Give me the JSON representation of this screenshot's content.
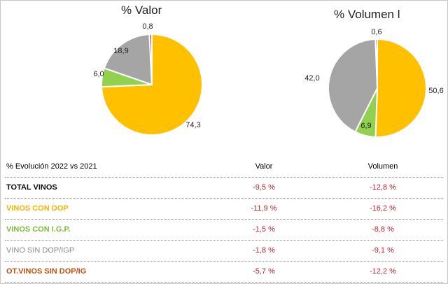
{
  "chart_data": [
    {
      "type": "pie",
      "title": "% Valor",
      "categories": [
        "VINOS CON DOP",
        "VINOS CON I.G.P.",
        "VINO SIN DOP/IGP",
        "OT.VINOS SIN DOP/IG"
      ],
      "values": [
        74.3,
        6.0,
        18.9,
        0.8
      ],
      "labels": [
        "74,3",
        "6,0",
        "18,9",
        "0,8"
      ],
      "colors": [
        "#FFC000",
        "#92D050",
        "#A5A5A5",
        "#C0504D"
      ]
    },
    {
      "type": "pie",
      "title": "% Volumen l",
      "categories": [
        "VINOS CON DOP",
        "VINOS CON I.G.P.",
        "VINO SIN DOP/IGP",
        "OT.VINOS SIN DOP/IG"
      ],
      "values": [
        50.6,
        6.9,
        42.0,
        0.6
      ],
      "labels": [
        "50,6",
        "6,9",
        "42,0",
        "0,6"
      ],
      "colors": [
        "#FFC000",
        "#92D050",
        "#A5A5A5",
        "#C0504D"
      ]
    }
  ],
  "table": {
    "header": [
      "% Evolución 2022 vs 2021",
      "Valor",
      "Volumen"
    ],
    "rows": [
      {
        "label": "TOTAL VINOS",
        "valor": "-9,5 %",
        "volumen": "-12,8 %",
        "color": "#111111"
      },
      {
        "label": "VINOS CON DOP",
        "valor": "-11,9 %",
        "volumen": "-16,2 %",
        "color": "#F5B400"
      },
      {
        "label": "VINOS CON I.G.P.",
        "valor": "-1,5 %",
        "volumen": "-8,8 %",
        "color": "#7DBB3C"
      },
      {
        "label": "VINO SIN DOP/IGP",
        "valor": "-1,8 %",
        "volumen": "-9,1 %",
        "color": "#8C8C8C"
      },
      {
        "label": "OT.VINOS SIN DOP/IG",
        "valor": "-5,7 %",
        "volumen": "-12,2 %",
        "color": "#C5500E"
      }
    ]
  }
}
